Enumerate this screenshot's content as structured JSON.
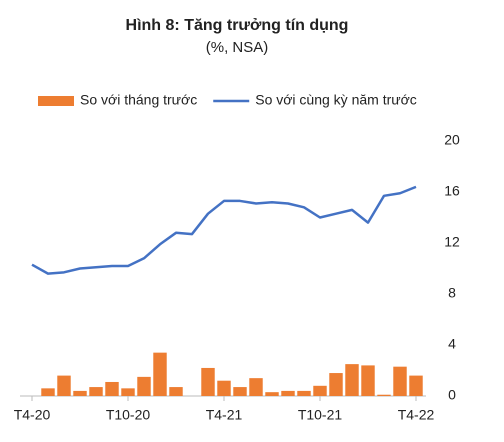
{
  "chart_data": {
    "type": "combo",
    "title": "Hình 8: Tăng trưởng tín dụng",
    "subtitle": "(%, NSA)",
    "categories": [
      "T4-20",
      null,
      null,
      null,
      null,
      null,
      "T10-20",
      null,
      null,
      null,
      null,
      null,
      "T4-21",
      null,
      null,
      null,
      null,
      null,
      "T10-21",
      null,
      null,
      null,
      null,
      null,
      "T4-22"
    ],
    "series": [
      {
        "name": "So với tháng trước",
        "type": "bar",
        "color": "#ed7d31",
        "values": [
          0,
          0.6,
          1.6,
          0.4,
          0.7,
          1.1,
          0.6,
          1.5,
          3.4,
          0.7,
          0,
          2.2,
          1.2,
          0.7,
          1.4,
          0.3,
          0.4,
          0.4,
          0.8,
          1.8,
          2.5,
          2.4,
          0.1,
          2.3,
          1.6
        ]
      },
      {
        "name": "So với cùng kỳ năm trước",
        "type": "line",
        "color": "#4472c4",
        "values": [
          10.3,
          9.6,
          9.7,
          10.0,
          10.1,
          10.2,
          10.2,
          10.8,
          11.9,
          12.8,
          12.7,
          14.3,
          15.3,
          15.3,
          15.1,
          15.2,
          15.1,
          14.8,
          14.0,
          14.3,
          14.6,
          13.6,
          15.7,
          15.9,
          16.4
        ]
      }
    ],
    "ylim": [
      0,
      20
    ],
    "yticks": [
      0,
      4,
      8,
      12,
      16,
      20
    ],
    "y_axis_side": "right",
    "legend": "top",
    "grid": false
  }
}
